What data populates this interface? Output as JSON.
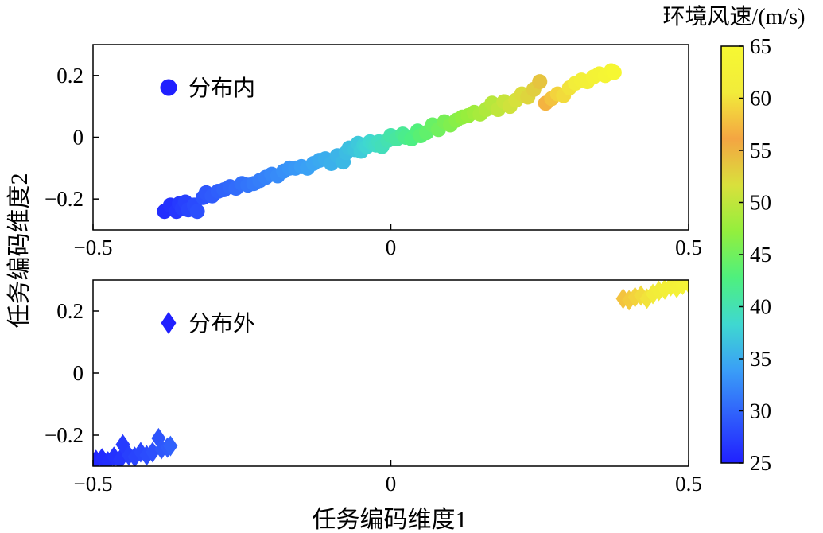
{
  "chart_data": {
    "type": "scatter",
    "xlabel": "任务编码维度1",
    "ylabel": "任务编码维度2",
    "colorbar": {
      "title": "环境风速/(m/s)",
      "range": [
        25,
        65
      ],
      "ticks": [
        "25",
        "30",
        "35",
        "40",
        "45",
        "50",
        "55",
        "60",
        "65"
      ],
      "colormap": [
        "#2020ff",
        "#2f5dfc",
        "#3a9ef7",
        "#3fd8d0",
        "#4ef07e",
        "#93ef3d",
        "#d9e03c",
        "#f4a542",
        "#f2ec3a",
        "#f6f832"
      ]
    },
    "panels": [
      {
        "legend": "分布内",
        "marker": "circle",
        "legend_color": "#2020ff",
        "xlim": [
          -0.5,
          0.5
        ],
        "ylim": [
          -0.3,
          0.3
        ],
        "xticks": [
          "-0.5",
          "0",
          "0.5"
        ],
        "yticks": [
          "0.2",
          "0",
          "-0.2"
        ],
        "points": [
          [
            -0.38,
            -0.24,
            26
          ],
          [
            -0.37,
            -0.22,
            26.3
          ],
          [
            -0.36,
            -0.24,
            26.6
          ],
          [
            -0.355,
            -0.215,
            26.9
          ],
          [
            -0.35,
            -0.23,
            27.2
          ],
          [
            -0.345,
            -0.21,
            27.5
          ],
          [
            -0.34,
            -0.235,
            27.8
          ],
          [
            -0.33,
            -0.22,
            28.1
          ],
          [
            -0.325,
            -0.24,
            28.4
          ],
          [
            -0.315,
            -0.195,
            28.7
          ],
          [
            -0.31,
            -0.18,
            29
          ],
          [
            -0.3,
            -0.19,
            29.3
          ],
          [
            -0.29,
            -0.175,
            29.6
          ],
          [
            -0.28,
            -0.17,
            29.9
          ],
          [
            -0.27,
            -0.16,
            30.2
          ],
          [
            -0.26,
            -0.165,
            30.5
          ],
          [
            -0.25,
            -0.15,
            30.8
          ],
          [
            -0.24,
            -0.155,
            31.1
          ],
          [
            -0.23,
            -0.15,
            31.4
          ],
          [
            -0.22,
            -0.14,
            31.7
          ],
          [
            -0.21,
            -0.13,
            32
          ],
          [
            -0.2,
            -0.12,
            32.3
          ],
          [
            -0.19,
            -0.125,
            32.6
          ],
          [
            -0.18,
            -0.11,
            32.9
          ],
          [
            -0.17,
            -0.1,
            33.2
          ],
          [
            -0.16,
            -0.1,
            33.5
          ],
          [
            -0.15,
            -0.095,
            33.8
          ],
          [
            -0.14,
            -0.1,
            34.1
          ],
          [
            -0.13,
            -0.085,
            34.4
          ],
          [
            -0.12,
            -0.075,
            34.7
          ],
          [
            -0.11,
            -0.07,
            35
          ],
          [
            -0.1,
            -0.085,
            35.3
          ],
          [
            -0.09,
            -0.06,
            35.6
          ],
          [
            -0.08,
            -0.08,
            35.9
          ],
          [
            -0.075,
            -0.05,
            36.2
          ],
          [
            -0.07,
            -0.035,
            36.5
          ],
          [
            -0.06,
            -0.04,
            36.8
          ],
          [
            -0.055,
            -0.02,
            37.1
          ],
          [
            -0.05,
            -0.045,
            37.4
          ],
          [
            -0.045,
            -0.025,
            37.7
          ],
          [
            -0.04,
            -0.03,
            38
          ],
          [
            -0.035,
            -0.015,
            38.3
          ],
          [
            -0.03,
            -0.02,
            38.6
          ],
          [
            -0.025,
            -0.025,
            38.9
          ],
          [
            -0.02,
            -0.015,
            39.2
          ],
          [
            -0.015,
            -0.03,
            39.5
          ],
          [
            -0.005,
            -0.01,
            40
          ],
          [
            0,
            0.005,
            40.5
          ],
          [
            0.01,
            -0.005,
            41
          ],
          [
            0.02,
            0.01,
            41.5
          ],
          [
            0.025,
            0,
            42
          ],
          [
            0.035,
            -0.005,
            42.5
          ],
          [
            0.045,
            0.02,
            43
          ],
          [
            0.05,
            0.005,
            43.5
          ],
          [
            0.06,
            0.015,
            44
          ],
          [
            0.07,
            0.04,
            44.5
          ],
          [
            0.08,
            0.025,
            45
          ],
          [
            0.09,
            0.05,
            45.5
          ],
          [
            0.1,
            0.04,
            46
          ],
          [
            0.11,
            0.055,
            46.5
          ],
          [
            0.12,
            0.065,
            47
          ],
          [
            0.13,
            0.07,
            47.5
          ],
          [
            0.14,
            0.08,
            48
          ],
          [
            0.15,
            0.075,
            48.5
          ],
          [
            0.16,
            0.09,
            49
          ],
          [
            0.17,
            0.11,
            49.5
          ],
          [
            0.18,
            0.09,
            50
          ],
          [
            0.19,
            0.115,
            50.5
          ],
          [
            0.2,
            0.1,
            51
          ],
          [
            0.21,
            0.12,
            51.5
          ],
          [
            0.22,
            0.14,
            52
          ],
          [
            0.23,
            0.13,
            52.5
          ],
          [
            0.24,
            0.155,
            53
          ],
          [
            0.25,
            0.18,
            53.8
          ],
          [
            0.26,
            0.11,
            57
          ],
          [
            0.27,
            0.125,
            58
          ],
          [
            0.28,
            0.14,
            59
          ],
          [
            0.29,
            0.135,
            59.5
          ],
          [
            0.3,
            0.16,
            60
          ],
          [
            0.31,
            0.175,
            60.8
          ],
          [
            0.32,
            0.185,
            61.5
          ],
          [
            0.33,
            0.18,
            62
          ],
          [
            0.34,
            0.195,
            62.6
          ],
          [
            0.35,
            0.205,
            63.2
          ],
          [
            0.36,
            0.2,
            63.8
          ],
          [
            0.37,
            0.215,
            64.4
          ],
          [
            0.375,
            0.21,
            64.8
          ]
        ]
      },
      {
        "legend": "分布外",
        "marker": "diamond",
        "legend_color": "#2020ff",
        "xlim": [
          -0.5,
          0.5
        ],
        "ylim": [
          -0.3,
          0.3
        ],
        "xticks": [
          "-0.5",
          "0",
          "0.5"
        ],
        "yticks": [
          "0.2",
          "0",
          "-0.2"
        ],
        "points": [
          [
            -0.495,
            -0.28,
            25.5
          ],
          [
            -0.485,
            -0.275,
            25.8
          ],
          [
            -0.475,
            -0.285,
            26
          ],
          [
            -0.465,
            -0.27,
            26.3
          ],
          [
            -0.455,
            -0.28,
            26.6
          ],
          [
            -0.45,
            -0.23,
            27
          ],
          [
            -0.44,
            -0.265,
            27.3
          ],
          [
            -0.43,
            -0.27,
            27.6
          ],
          [
            -0.42,
            -0.255,
            27.9
          ],
          [
            -0.41,
            -0.265,
            28.2
          ],
          [
            -0.4,
            -0.255,
            28.5
          ],
          [
            -0.39,
            -0.21,
            28.8
          ],
          [
            -0.385,
            -0.245,
            29.1
          ],
          [
            -0.375,
            -0.24,
            29.4
          ],
          [
            -0.37,
            -0.235,
            29.7
          ],
          [
            0.39,
            0.24,
            58
          ],
          [
            0.4,
            0.235,
            58.5
          ],
          [
            0.41,
            0.245,
            59
          ],
          [
            0.42,
            0.25,
            59.5
          ],
          [
            0.43,
            0.24,
            60
          ],
          [
            0.44,
            0.255,
            60.5
          ],
          [
            0.45,
            0.265,
            61
          ],
          [
            0.46,
            0.27,
            61.5
          ],
          [
            0.47,
            0.28,
            62
          ],
          [
            0.48,
            0.275,
            62.5
          ],
          [
            0.49,
            0.285,
            63
          ],
          [
            0.5,
            0.29,
            63.5
          ]
        ]
      }
    ]
  }
}
